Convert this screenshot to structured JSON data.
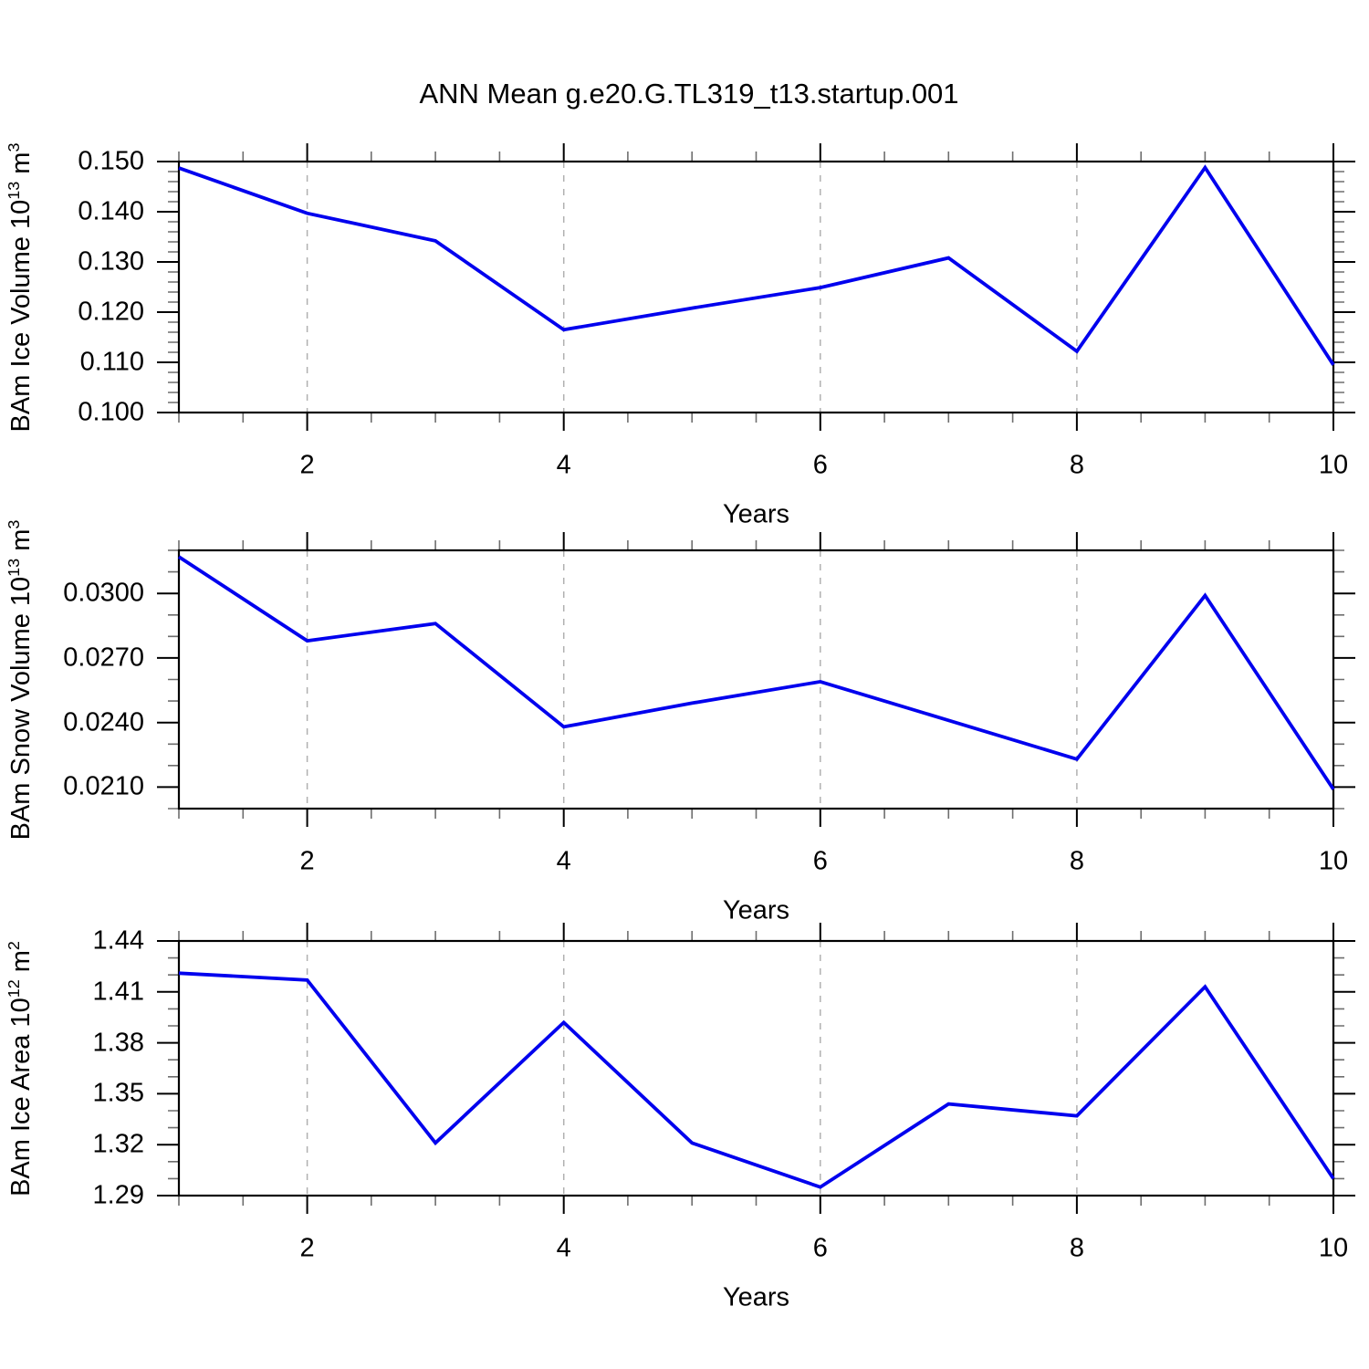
{
  "figure_title": "ANN Mean g.e20.G.TL319_t13.startup.001",
  "colors": {
    "line": "#0000ee",
    "grid": "#b0b0b0",
    "frame": "#000000",
    "tick_major": "#000000",
    "tick_minor": "#6e6e6e"
  },
  "chart_data": [
    {
      "type": "line",
      "name": "ice-volume",
      "ylabel_parts": [
        {
          "t": "BAm Ice Volume 10"
        },
        {
          "t": "13",
          "sup": true
        },
        {
          "t": " m"
        },
        {
          "t": "3",
          "sup": true
        }
      ],
      "xlabel": "Years",
      "x": [
        1,
        2,
        3,
        4,
        5,
        6,
        7,
        8,
        9,
        10
      ],
      "values": [
        0.1487,
        0.1397,
        0.1342,
        0.1165,
        0.1208,
        0.1249,
        0.1308,
        0.1122,
        0.1488,
        0.1095
      ],
      "xlim": [
        1,
        10
      ],
      "ylim": [
        0.1,
        0.15
      ],
      "ymajor": [
        0.1,
        0.11,
        0.12,
        0.13,
        0.14,
        0.15
      ],
      "ymajor_labels": [
        "0.100",
        "0.110",
        "0.120",
        "0.130",
        "0.140",
        "0.150"
      ],
      "yminor_step": 0.002,
      "xmajor": [
        2,
        4,
        6,
        8,
        10
      ],
      "xmajor_labels": [
        "2",
        "4",
        "6",
        "8",
        "10"
      ],
      "xminor_step": 0.5,
      "grid_x": [
        2,
        4,
        6,
        8
      ],
      "grid_style": "dashed",
      "legend": "none"
    },
    {
      "type": "line",
      "name": "snow-volume",
      "ylabel_parts": [
        {
          "t": "BAm Snow Volume 10"
        },
        {
          "t": "13",
          "sup": true
        },
        {
          "t": " m"
        },
        {
          "t": "3",
          "sup": true
        }
      ],
      "xlabel": "Years",
      "x": [
        1,
        2,
        3,
        4,
        5,
        6,
        7,
        8,
        9,
        10
      ],
      "values": [
        0.0317,
        0.0278,
        0.0286,
        0.0238,
        0.0249,
        0.0259,
        0.0241,
        0.0223,
        0.0299,
        0.0209
      ],
      "xlim": [
        1,
        10
      ],
      "ylim": [
        0.02,
        0.032
      ],
      "ymajor": [
        0.021,
        0.024,
        0.027,
        0.03
      ],
      "ymajor_labels": [
        "0.0210",
        "0.0240",
        "0.0270",
        "0.0300"
      ],
      "yminor_step": 0.001,
      "xmajor": [
        2,
        4,
        6,
        8,
        10
      ],
      "xmajor_labels": [
        "2",
        "4",
        "6",
        "8",
        "10"
      ],
      "xminor_step": 0.5,
      "grid_x": [
        2,
        4,
        6,
        8
      ],
      "grid_style": "dashed",
      "legend": "none"
    },
    {
      "type": "line",
      "name": "ice-area",
      "ylabel_parts": [
        {
          "t": "BAm Ice Area 10"
        },
        {
          "t": "12",
          "sup": true
        },
        {
          "t": " m"
        },
        {
          "t": "2",
          "sup": true
        }
      ],
      "xlabel": "Years",
      "x": [
        1,
        2,
        3,
        4,
        5,
        6,
        7,
        8,
        9,
        10
      ],
      "values": [
        1.421,
        1.417,
        1.321,
        1.392,
        1.321,
        1.295,
        1.344,
        1.337,
        1.413,
        1.3
      ],
      "xlim": [
        1,
        10
      ],
      "ylim": [
        1.29,
        1.44
      ],
      "ymajor": [
        1.29,
        1.32,
        1.35,
        1.38,
        1.41,
        1.44
      ],
      "ymajor_labels": [
        "1.29",
        "1.32",
        "1.35",
        "1.38",
        "1.41",
        "1.44"
      ],
      "yminor_step": 0.01,
      "xmajor": [
        2,
        4,
        6,
        8,
        10
      ],
      "xmajor_labels": [
        "2",
        "4",
        "6",
        "8",
        "10"
      ],
      "xminor_step": 0.5,
      "grid_x": [
        2,
        4,
        6,
        8
      ],
      "grid_style": "dashed",
      "legend": "none"
    }
  ]
}
